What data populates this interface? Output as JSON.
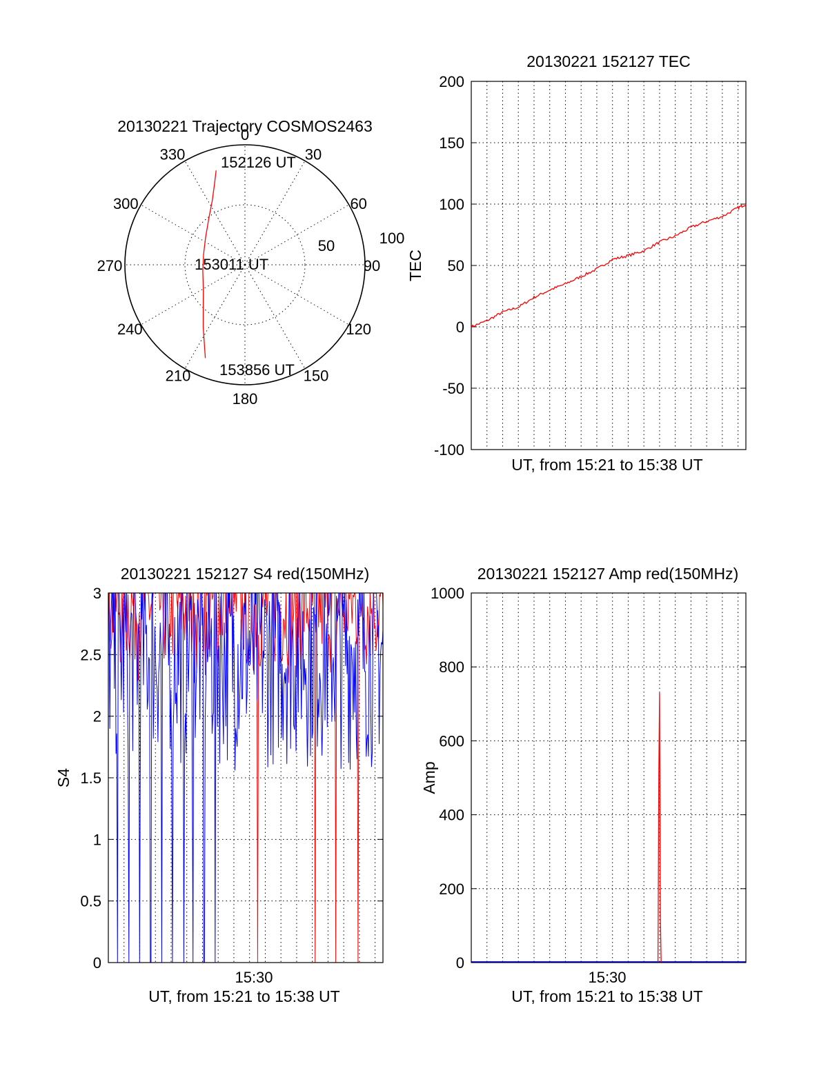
{
  "colors": {
    "red": "#ff0000",
    "blue": "#0000ff",
    "black": "#000000"
  },
  "chart_data": [
    {
      "type": "polar",
      "title": "20130221 Trajectory COSMOS2463",
      "azimuth_labels": [
        "0",
        "30",
        "60",
        "90",
        "120",
        "150",
        "180",
        "210",
        "240",
        "270",
        "300",
        "330"
      ],
      "radial_labels": [
        "50",
        "100"
      ],
      "rlim": [
        0,
        90
      ],
      "track_color": "#ff0000",
      "annotations": {
        "start": "152126 UT",
        "middle": "153011 UT",
        "end": "153856 UT"
      },
      "track": [
        {
          "az": 343,
          "el": 16
        },
        {
          "az": 339,
          "el": 26
        },
        {
          "az": 333,
          "el": 36
        },
        {
          "az": 322,
          "el": 46
        },
        {
          "az": 305,
          "el": 54
        },
        {
          "az": 284,
          "el": 58
        },
        {
          "az": 261,
          "el": 58
        },
        {
          "az": 240,
          "el": 54
        },
        {
          "az": 224,
          "el": 45
        },
        {
          "az": 214,
          "el": 34
        },
        {
          "az": 207,
          "el": 23
        },
        {
          "az": 203,
          "el": 14
        }
      ]
    },
    {
      "type": "line",
      "title": "20130221 152127 TEC",
      "xlabel": "UT, from 15:21 to 15:38 UT",
      "ylabel": "TEC",
      "ylim": [
        -100,
        200
      ],
      "yticks": [
        "-100",
        "-50",
        "0",
        "50",
        "100",
        "150",
        "200"
      ],
      "xlim": [
        0,
        17.5
      ],
      "grid": true,
      "series": [
        {
          "color": "#ff0000",
          "x": [
            0,
            1,
            2,
            3,
            4,
            5,
            6,
            7,
            8,
            9,
            10,
            11,
            12,
            13,
            14,
            15,
            16,
            17,
            17.5
          ],
          "y": [
            0,
            5,
            12,
            16,
            24,
            30,
            35,
            41,
            47,
            55,
            58,
            62,
            69,
            74,
            81,
            86,
            90,
            97,
            100
          ]
        }
      ]
    },
    {
      "type": "line",
      "title": "20130221 152127 S4 red(150MHz)",
      "xlabel": "UT, from 15:21 to 15:38 UT",
      "ylabel": "S4",
      "ylim": [
        0,
        3
      ],
      "yticks": [
        "0",
        "0.5",
        "1",
        "1.5",
        "2",
        "2.5",
        "3"
      ],
      "xlim": [
        0,
        17.5
      ],
      "xtick_labels": [
        {
          "x": 9,
          "label": "15:30"
        }
      ],
      "grid": true,
      "series": [
        {
          "color": "#ff0000",
          "description": "noisy, mostly 2-3",
          "y_range": [
            2.0,
            3.0
          ],
          "dropouts_to_zero_at": [
            9.5,
            13.2,
            14.5,
            15.9
          ]
        },
        {
          "color": "#0000ff",
          "description": "noisy, mostly 1.5-3",
          "y_range": [
            1.3,
            3.0
          ],
          "dropouts_to_zero_at": [
            0.6,
            1.3,
            2.0,
            2.7,
            3.4,
            4.1,
            4.8,
            5.4,
            6.1,
            6.8
          ]
        }
      ]
    },
    {
      "type": "line",
      "title": "20130221 152127 Amp red(150MHz)",
      "xlabel": "UT, from 15:21 to 15:38 UT",
      "ylabel": "Amp",
      "ylim": [
        0,
        1000
      ],
      "yticks": [
        "0",
        "200",
        "400",
        "600",
        "800",
        "1000"
      ],
      "xlim": [
        0,
        17.5
      ],
      "xtick_labels": [
        {
          "x": 9,
          "label": "15:30"
        }
      ],
      "grid": true,
      "series": [
        {
          "color": "#0000ff",
          "x": [
            0,
            17.5
          ],
          "y": [
            2,
            2
          ]
        },
        {
          "color": "#ff0000",
          "x": [
            11.9,
            11.95,
            12.0,
            12.05,
            12.1
          ],
          "y": [
            0,
            510,
            730,
            120,
            0
          ]
        }
      ]
    }
  ]
}
